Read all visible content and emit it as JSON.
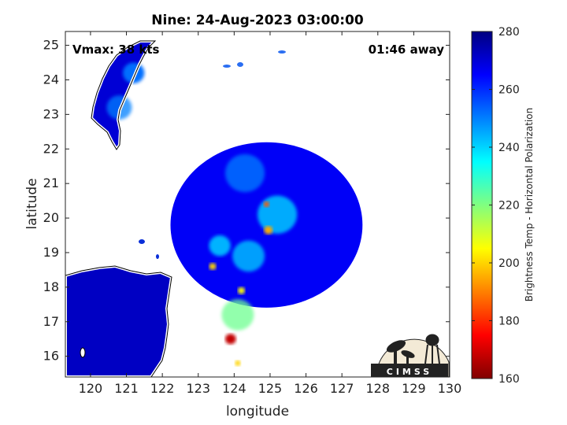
{
  "chart_data": {
    "type": "heatmap",
    "title": "Nine: 24-Aug-2023 03:00:00",
    "xlabel": "longitude",
    "ylabel": "latitude",
    "xlim": [
      119.3,
      130
    ],
    "ylim": [
      15.4,
      25.4
    ],
    "xticks": [
      120,
      121,
      122,
      123,
      124,
      125,
      126,
      127,
      128,
      129,
      130
    ],
    "yticks": [
      16,
      17,
      18,
      19,
      20,
      21,
      22,
      23,
      24,
      25
    ],
    "annotations": {
      "vmax": "Vmax: 38 kts",
      "time_offset": "01:46 away"
    },
    "colorbar": {
      "label": "Brightness Temp - Horizontal Polarization",
      "range": [
        160,
        280
      ],
      "ticks": [
        160,
        180,
        200,
        220,
        240,
        260,
        280
      ],
      "colormap": "jet"
    },
    "swath_center": [
      124.9,
      19.8
    ],
    "swath_radius_deg": 2.7,
    "background_temp": 266,
    "features": [
      {
        "lon": 125.2,
        "lat": 20.1,
        "temp": 238,
        "spread": 0.55
      },
      {
        "lon": 124.9,
        "lat": 20.4,
        "temp": 185,
        "spread": 0.08
      },
      {
        "lon": 124.95,
        "lat": 19.65,
        "temp": 195,
        "spread": 0.12
      },
      {
        "lon": 123.4,
        "lat": 18.6,
        "temp": 200,
        "spread": 0.1
      },
      {
        "lon": 124.2,
        "lat": 17.9,
        "temp": 205,
        "spread": 0.1
      },
      {
        "lon": 123.9,
        "lat": 16.5,
        "temp": 168,
        "spread": 0.15
      },
      {
        "lon": 124.1,
        "lat": 17.2,
        "temp": 222,
        "spread": 0.45
      },
      {
        "lon": 124.1,
        "lat": 15.8,
        "temp": 200,
        "spread": 0.08
      },
      {
        "lon": 124.4,
        "lat": 18.9,
        "temp": 240,
        "spread": 0.45
      },
      {
        "lon": 123.6,
        "lat": 19.2,
        "temp": 244,
        "spread": 0.3
      },
      {
        "lon": 124.3,
        "lat": 21.3,
        "temp": 250,
        "spread": 0.55
      },
      {
        "lon": 120.8,
        "lat": 23.2,
        "temp": 250,
        "spread": 0.35
      },
      {
        "lon": 121.2,
        "lat": 24.2,
        "temp": 252,
        "spread": 0.3
      }
    ]
  },
  "logo": {
    "text": "CIMSS"
  }
}
